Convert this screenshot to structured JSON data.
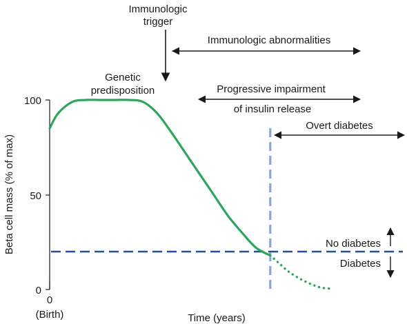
{
  "chart_data": {
    "type": "line",
    "xlabel": "Time (years)",
    "ylabel": "Beta cell mass (% of max)",
    "ylim": [
      0,
      100
    ],
    "y_ticks": [
      "0",
      "50",
      "100"
    ],
    "x_tick_labels": [
      "0",
      "(Birth)"
    ],
    "grid": false,
    "series": [
      {
        "style": "solid",
        "color": "#2ca55a",
        "x": [
          0,
          3,
          8,
          13,
          18,
          23,
          28,
          33,
          38,
          43,
          48,
          53,
          58,
          63,
          68,
          73,
          78
        ],
        "y": [
          85,
          93,
          99,
          100,
          100,
          100,
          100,
          99,
          93,
          83,
          72,
          61,
          50,
          39,
          30,
          22,
          18
        ]
      },
      {
        "style": "dotted",
        "color": "#2ca55a",
        "x": [
          78,
          81,
          84,
          87,
          90,
          93,
          96,
          99
        ],
        "y": [
          18,
          14,
          10,
          7,
          4.5,
          2.5,
          1,
          0.5
        ]
      }
    ],
    "threshold_line": {
      "y": 20,
      "color": "#1f4f96",
      "above_label": "No diabetes",
      "below_label": "Diabetes"
    },
    "onset_line": {
      "x": 78,
      "color": "#8fa5d4"
    },
    "annotations": [
      {
        "lines": [
          "Immunologic",
          "trigger"
        ],
        "kind": "down-arrow",
        "x": 40
      },
      {
        "lines": [
          "Genetic",
          "predisposition"
        ],
        "kind": "text"
      },
      {
        "lines": [
          "Immunologic abnormalities"
        ],
        "kind": "range-arrow",
        "x_start": 42,
        "x_end": 110
      },
      {
        "lines": [
          "Progressive impairment",
          "of insulin release"
        ],
        "kind": "range-arrow",
        "x_start": 51,
        "x_end": 110
      },
      {
        "lines": [
          "Overt diabetes"
        ],
        "kind": "range-arrow",
        "x_start": 78,
        "x_end": 125
      }
    ],
    "colors": {
      "curve": "#2ca55a",
      "threshold": "#1f4f96",
      "onset": "#8fa5d4",
      "text": "#1a1a1a"
    }
  }
}
